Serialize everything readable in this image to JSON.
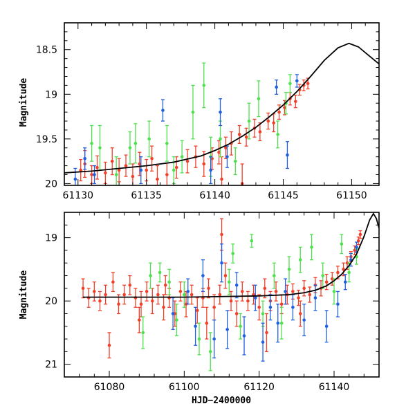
{
  "chart_data": [
    {
      "type": "scatter",
      "title": "",
      "xlabel": "",
      "ylabel": "Magnitude",
      "xlim": [
        61129,
        61152
      ],
      "ylim": [
        20.02,
        18.2
      ],
      "x_ticks": [
        61130,
        61135,
        61140,
        61145,
        61150
      ],
      "x_tick_labels": [
        "61130",
        "61135",
        "61140",
        "61145",
        "61150"
      ],
      "y_ticks": [
        18.5,
        19,
        19.5,
        20
      ],
      "y_tick_labels": [
        "18.5",
        "19",
        "19.5",
        "20"
      ],
      "colors": {
        "red": "#f0402a",
        "green": "#4fe04f",
        "blue": "#1f5fe0",
        "model": "#000000"
      },
      "model_curve": {
        "x": [
          61129,
          61131,
          61133,
          61135,
          61137,
          61139,
          61140,
          61141,
          61142,
          61143,
          61144,
          61145,
          61146,
          61147,
          61148,
          61149,
          61149.8,
          61150.5,
          61151.2,
          61152
        ],
        "y": [
          19.88,
          19.86,
          19.83,
          19.8,
          19.76,
          19.69,
          19.63,
          19.56,
          19.47,
          19.37,
          19.25,
          19.12,
          18.97,
          18.8,
          18.62,
          18.48,
          18.43,
          18.47,
          18.56,
          18.66
        ]
      },
      "series": [
        {
          "name": "red",
          "color": "#f0402a",
          "points": [
            [
              61130.2,
              19.85,
              0.12
            ],
            [
              61130.5,
              19.78,
              0.15
            ],
            [
              61131,
              19.9,
              0.1
            ],
            [
              61131.4,
              19.82,
              0.13
            ],
            [
              61132,
              19.88,
              0.12
            ],
            [
              61132.5,
              19.75,
              0.15
            ],
            [
              61133,
              19.85,
              0.13
            ],
            [
              61133.5,
              19.8,
              0.12
            ],
            [
              61134,
              19.92,
              0.14
            ],
            [
              61134.5,
              19.78,
              0.13
            ],
            [
              61135,
              19.85,
              0.12
            ],
            [
              61135.4,
              19.72,
              0.14
            ],
            [
              61135.8,
              19.95,
              0.15
            ],
            [
              61136.5,
              19.9,
              0.13
            ],
            [
              61137.2,
              19.82,
              0.12
            ],
            [
              61138,
              19.75,
              0.13
            ],
            [
              61138.6,
              19.7,
              0.12
            ],
            [
              61139.2,
              19.78,
              0.14
            ],
            [
              61139.8,
              19.72,
              0.12
            ],
            [
              61140.3,
              19.65,
              0.13
            ],
            [
              61140.8,
              19.6,
              0.12
            ],
            [
              61141.2,
              19.55,
              0.13
            ],
            [
              61141.8,
              19.45,
              0.1
            ],
            [
              61142.3,
              19.48,
              0.1
            ],
            [
              61142.9,
              19.38,
              0.1
            ],
            [
              61143.3,
              19.42,
              0.1
            ],
            [
              61143.9,
              19.3,
              0.09
            ],
            [
              61144.3,
              19.32,
              0.1
            ],
            [
              61144.7,
              19.2,
              0.08
            ],
            [
              61145.1,
              19.15,
              0.08
            ],
            [
              61145.5,
              19.05,
              0.07
            ],
            [
              61145.9,
              19.08,
              0.07
            ],
            [
              61146.2,
              18.95,
              0.06
            ],
            [
              61146.5,
              18.9,
              0.06
            ],
            [
              61146.8,
              18.88,
              0.06
            ],
            [
              61142,
              20,
              0.22
            ],
            [
              61140.5,
              19.95,
              0.25
            ]
          ]
        },
        {
          "name": "green",
          "color": "#4fe04f",
          "points": [
            [
              61131,
              19.55,
              0.2
            ],
            [
              61131.6,
              19.6,
              0.25
            ],
            [
              61132.8,
              19.9,
              0.2
            ],
            [
              61133.8,
              19.6,
              0.18
            ],
            [
              61134.2,
              19.55,
              0.22
            ],
            [
              61135.2,
              19.5,
              0.2
            ],
            [
              61136.5,
              19.55,
              0.2
            ],
            [
              61137,
              19.85,
              0.15
            ],
            [
              61137.6,
              19.7,
              0.18
            ],
            [
              61138.4,
              19.2,
              0.3
            ],
            [
              61139.2,
              18.9,
              0.25
            ],
            [
              61139.7,
              19.7,
              0.22
            ],
            [
              61140.4,
              19.5,
              0.2
            ],
            [
              61141.5,
              19.75,
              0.15
            ],
            [
              61142.5,
              19.3,
              0.2
            ],
            [
              61143.2,
              19.05,
              0.2
            ],
            [
              61144.6,
              19.45,
              0.15
            ],
            [
              61145.2,
              19.1,
              0.12
            ],
            [
              61145.5,
              18.88,
              0.1
            ]
          ]
        },
        {
          "name": "blue",
          "color": "#1f5fe0",
          "points": [
            [
              61129.8,
              19.95,
              0.12
            ],
            [
              61130.5,
              19.72,
              0.12
            ],
            [
              61131.2,
              19.9,
              0.1
            ],
            [
              61134.6,
              19.85,
              0.15
            ],
            [
              61136.2,
              19.18,
              0.12
            ],
            [
              61139.7,
              19.85,
              0.15
            ],
            [
              61140.4,
              19.2,
              0.15
            ],
            [
              61140.9,
              19.7,
              0.12
            ],
            [
              61144.5,
              18.92,
              0.08
            ],
            [
              61145.3,
              19.68,
              0.15
            ],
            [
              61146,
              18.85,
              0.07
            ]
          ]
        }
      ]
    },
    {
      "type": "scatter",
      "title": "",
      "xlabel": "HJD−2400000",
      "ylabel": "Magnitude",
      "xlim": [
        61068,
        61152
      ],
      "ylim": [
        21.2,
        18.6
      ],
      "x_ticks": [
        61080,
        61100,
        61120,
        61140
      ],
      "x_tick_labels": [
        "61080",
        "61100",
        "61120",
        "61140"
      ],
      "y_ticks": [
        19,
        20,
        21
      ],
      "y_tick_labels": [
        "19",
        "20",
        "21"
      ],
      "colors": {
        "red": "#f0402a",
        "green": "#4fe04f",
        "blue": "#1f5fe0",
        "model": "#000000"
      },
      "model_curve": {
        "x": [
          61073,
          61090,
          61100,
          61110,
          61120,
          61128,
          61132,
          61135,
          61138,
          61140,
          61142,
          61144,
          61146,
          61148,
          61149.5,
          61150.5,
          61151.3,
          61152
        ],
        "y": [
          19.94,
          19.94,
          19.94,
          19.93,
          19.92,
          19.9,
          19.87,
          19.83,
          19.76,
          19.68,
          19.58,
          19.44,
          19.26,
          18.98,
          18.72,
          18.62,
          18.7,
          18.85
        ]
      },
      "series": [
        {
          "name": "red",
          "color": "#f0402a",
          "points": [
            [
              61073,
              19.8,
              0.15
            ],
            [
              61074.5,
              19.95,
              0.15
            ],
            [
              61076,
              19.85,
              0.15
            ],
            [
              61077.5,
              20,
              0.15
            ],
            [
              61079,
              19.9,
              0.15
            ],
            [
              61080,
              20.7,
              0.2
            ],
            [
              61081,
              19.7,
              0.15
            ],
            [
              61082.5,
              20.05,
              0.15
            ],
            [
              61084,
              19.9,
              0.15
            ],
            [
              61085.5,
              19.75,
              0.15
            ],
            [
              61087,
              19.95,
              0.15
            ],
            [
              61088.5,
              20.05,
              0.2
            ],
            [
              61090,
              19.85,
              0.15
            ],
            [
              61091.5,
              20,
              0.2
            ],
            [
              61093,
              19.9,
              0.15
            ],
            [
              61094.5,
              20.1,
              0.2
            ],
            [
              61096,
              19.95,
              0.15
            ],
            [
              61097.5,
              20.2,
              0.2
            ],
            [
              61099,
              19.85,
              0.15
            ],
            [
              61100.5,
              20.05,
              0.2
            ],
            [
              61102,
              19.9,
              0.15
            ],
            [
              61103.5,
              20.15,
              0.2
            ],
            [
              61105,
              19.95,
              0.15
            ],
            [
              61106.5,
              19.8,
              0.15
            ],
            [
              61108,
              20.1,
              0.2
            ],
            [
              61109.5,
              19.9,
              0.15
            ],
            [
              61111,
              19.6,
              0.2
            ],
            [
              61112.5,
              20,
              0.15
            ],
            [
              61114,
              20.2,
              0.2
            ],
            [
              61115.5,
              19.85,
              0.15
            ],
            [
              61117,
              20,
              0.15
            ],
            [
              61118.5,
              19.9,
              0.15
            ],
            [
              61120,
              20.1,
              0.2
            ],
            [
              61121.5,
              19.8,
              0.15
            ],
            [
              61123,
              20,
              0.15
            ],
            [
              61124.5,
              19.85,
              0.15
            ],
            [
              61126,
              20.05,
              0.15
            ],
            [
              61127.5,
              19.9,
              0.15
            ],
            [
              61129,
              19.85,
              0.12
            ],
            [
              61130.5,
              19.95,
              0.12
            ],
            [
              61132,
              19.8,
              0.12
            ],
            [
              61133.5,
              19.9,
              0.12
            ],
            [
              61135,
              19.75,
              0.12
            ],
            [
              61136.5,
              19.8,
              0.12
            ],
            [
              61138,
              19.7,
              0.12
            ],
            [
              61139.5,
              19.65,
              0.1
            ],
            [
              61141,
              19.55,
              0.1
            ],
            [
              61142.5,
              19.5,
              0.1
            ],
            [
              61143.5,
              19.4,
              0.1
            ],
            [
              61144.5,
              19.3,
              0.08
            ],
            [
              61145.5,
              19.2,
              0.07
            ],
            [
              61146.5,
              19.05,
              0.06
            ],
            [
              61147,
              18.95,
              0.06
            ],
            [
              61088,
              20.3,
              0.2
            ],
            [
              61095,
              19.75,
              0.15
            ],
            [
              61110,
              18.95,
              0.25
            ],
            [
              61131,
              20.2,
              0.2
            ],
            [
              61106,
              20.35,
              0.25
            ],
            [
              61122,
              20.5,
              0.3
            ]
          ]
        },
        {
          "name": "green",
          "color": "#4fe04f",
          "points": [
            [
              61089,
              20.5,
              0.25
            ],
            [
              61091,
              19.6,
              0.2
            ],
            [
              61093.5,
              19.55,
              0.15
            ],
            [
              61096,
              19.7,
              0.2
            ],
            [
              61098,
              20.3,
              0.25
            ],
            [
              61100,
              19.9,
              0.2
            ],
            [
              61104,
              20.6,
              0.25
            ],
            [
              61107,
              20.8,
              0.3
            ],
            [
              61112,
              19.7,
              0.2
            ],
            [
              61113,
              19.25,
              0.15
            ],
            [
              61115,
              20.4,
              0.2
            ],
            [
              61118,
              19.05,
              0.1
            ],
            [
              61121,
              20.2,
              0.2
            ],
            [
              61124,
              19.6,
              0.2
            ],
            [
              61126,
              20.35,
              0.25
            ],
            [
              61128,
              19.5,
              0.2
            ],
            [
              61131,
              19.35,
              0.2
            ],
            [
              61134,
              19.15,
              0.2
            ],
            [
              61137,
              19.6,
              0.2
            ],
            [
              61140,
              19.85,
              0.2
            ],
            [
              61142,
              19.1,
              0.15
            ],
            [
              61144,
              19.55,
              0.15
            ],
            [
              61146,
              19.3,
              0.12
            ]
          ]
        },
        {
          "name": "blue",
          "color": "#1f5fe0",
          "points": [
            [
              61097,
              20.2,
              0.25
            ],
            [
              61101,
              19.85,
              0.2
            ],
            [
              61103,
              20.4,
              0.3
            ],
            [
              61105,
              19.6,
              0.25
            ],
            [
              61108,
              20.6,
              0.3
            ],
            [
              61110,
              19.4,
              0.3
            ],
            [
              61111.5,
              20.45,
              0.3
            ],
            [
              61114,
              19.75,
              0.2
            ],
            [
              61116,
              20.55,
              0.3
            ],
            [
              61119,
              19.95,
              0.2
            ],
            [
              61121,
              20.65,
              0.3
            ],
            [
              61123,
              20.1,
              0.2
            ],
            [
              61125,
              20.35,
              0.3
            ],
            [
              61127,
              19.85,
              0.2
            ],
            [
              61129,
              20.1,
              0.2
            ],
            [
              61132,
              20.3,
              0.25
            ],
            [
              61135,
              19.95,
              0.2
            ],
            [
              61138,
              20.4,
              0.25
            ],
            [
              61141,
              20.05,
              0.2
            ],
            [
              61143,
              19.7,
              0.12
            ],
            [
              61144.5,
              19.35,
              0.1
            ],
            [
              61146,
              19.15,
              0.08
            ]
          ]
        }
      ]
    }
  ]
}
